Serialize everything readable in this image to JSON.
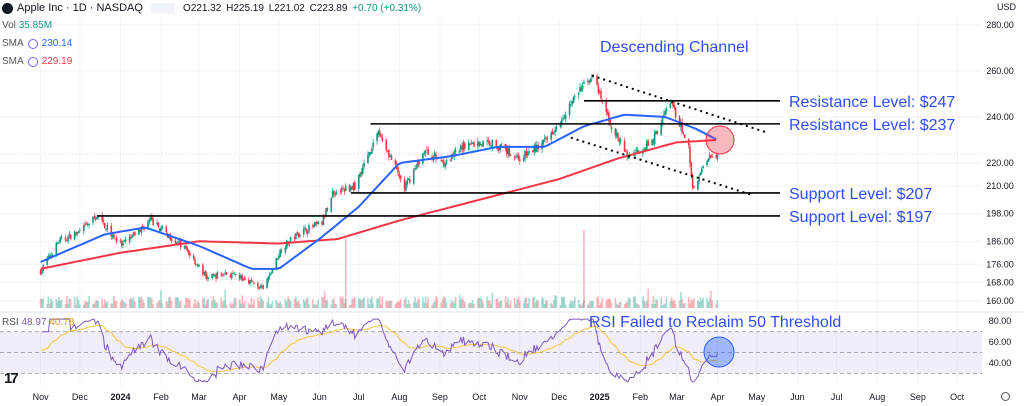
{
  "header": {
    "symbol": "Apple Inc · 1D · NASDAQ",
    "open": "O221.32",
    "high": "H225.19",
    "low": "L221.02",
    "close": "C223.89",
    "change": "+0.70 (+0.31%)",
    "currency": "USD",
    "vol_label": "Vol",
    "vol_value": "35.85M",
    "sma1_label": "SMA",
    "sma1_value": "230.14",
    "sma2_label": "SMA",
    "sma2_value": "229.19",
    "rsi_label": "RSI",
    "rsi_value": "48.97",
    "rsi_ma_value": "40.78"
  },
  "colors": {
    "up": "#089981",
    "down": "#f23645",
    "sma_fast": "#2962ff",
    "sma_slow": "#f23645",
    "annotation": "#2f4dff",
    "rsi_line": "#7e57c2",
    "rsi_ma": "#f5c542"
  },
  "chart_data": {
    "type": "candlestick",
    "title": "",
    "y_axis": {
      "ticks": [
        "280.00",
        "260.00",
        "240.00",
        "220.00",
        "210.00",
        "198.00",
        "186.00",
        "176.00",
        "168.00",
        "160.00"
      ],
      "range": [
        157,
        283
      ]
    },
    "rsi_axis": {
      "ticks": [
        "80.00",
        "60.00",
        "40.00"
      ],
      "range": [
        18,
        85
      ],
      "levels": [
        70,
        50,
        30
      ]
    },
    "x_axis": {
      "ticks": [
        "Nov",
        "Dec",
        "2024",
        "Feb",
        "Mar",
        "Apr",
        "May",
        "Jun",
        "Jul",
        "Aug",
        "Sep",
        "Oct",
        "Nov",
        "Dec",
        "2025",
        "Feb",
        "Mar",
        "Apr",
        "May",
        "Jun",
        "Jul",
        "Aug",
        "Sep",
        "Oct"
      ]
    },
    "price_path": [
      [
        "2023-11-01",
        173
      ],
      [
        "2023-11-15",
        186
      ],
      [
        "2023-12-01",
        190
      ],
      [
        "2023-12-14",
        197
      ],
      [
        "2024-01-02",
        184
      ],
      [
        "2024-01-24",
        195
      ],
      [
        "2024-02-06",
        189
      ],
      [
        "2024-02-21",
        182
      ],
      [
        "2024-03-07",
        170
      ],
      [
        "2024-03-21",
        172
      ],
      [
        "2024-04-08",
        169
      ],
      [
        "2024-04-19",
        165
      ],
      [
        "2024-05-03",
        183
      ],
      [
        "2024-05-17",
        190
      ],
      [
        "2024-06-03",
        194
      ],
      [
        "2024-06-11",
        207
      ],
      [
        "2024-06-28",
        210
      ],
      [
        "2024-07-16",
        234
      ],
      [
        "2024-08-05",
        209
      ],
      [
        "2024-08-20",
        225
      ],
      [
        "2024-09-06",
        220
      ],
      [
        "2024-09-20",
        228
      ],
      [
        "2024-10-10",
        229
      ],
      [
        "2024-11-01",
        222
      ],
      [
        "2024-11-20",
        229
      ],
      [
        "2024-12-16",
        251
      ],
      [
        "2024-12-26",
        258
      ],
      [
        "2025-01-10",
        236
      ],
      [
        "2025-01-22",
        223
      ],
      [
        "2025-02-10",
        229
      ],
      [
        "2025-02-24",
        247
      ],
      [
        "2025-03-10",
        227
      ],
      [
        "2025-03-13",
        209
      ],
      [
        "2025-03-25",
        223
      ],
      [
        "2025-04-01",
        224
      ]
    ],
    "sma_fast": [
      [
        "2023-11-01",
        177
      ],
      [
        "2023-12-20",
        189
      ],
      [
        "2024-01-20",
        192
      ],
      [
        "2024-03-01",
        184
      ],
      [
        "2024-04-10",
        174
      ],
      [
        "2024-05-01",
        174
      ],
      [
        "2024-06-01",
        187
      ],
      [
        "2024-07-01",
        201
      ],
      [
        "2024-08-01",
        220
      ],
      [
        "2024-09-10",
        223
      ],
      [
        "2024-10-15",
        227
      ],
      [
        "2024-11-20",
        227
      ],
      [
        "2024-12-20",
        236
      ],
      [
        "2025-01-20",
        241
      ],
      [
        "2025-02-20",
        240
      ],
      [
        "2025-03-15",
        235
      ],
      [
        "2025-04-01",
        230
      ]
    ],
    "sma_slow": [
      [
        "2023-11-01",
        174
      ],
      [
        "2024-01-01",
        181
      ],
      [
        "2024-03-01",
        186
      ],
      [
        "2024-05-01",
        185
      ],
      [
        "2024-06-15",
        187
      ],
      [
        "2024-08-01",
        195
      ],
      [
        "2024-10-01",
        204
      ],
      [
        "2024-12-01",
        213
      ],
      [
        "2025-01-15",
        222
      ],
      [
        "2025-03-01",
        229
      ],
      [
        "2025-04-01",
        230
      ]
    ],
    "horizontal_levels": [
      {
        "price": 247,
        "from": "2024-12-20",
        "label": "Resistance Level: $247"
      },
      {
        "price": 237,
        "from": "2024-07-10",
        "label": "Resistance Level: $237"
      },
      {
        "price": 207,
        "from": "2024-06-25",
        "label": "Support Level: $207"
      },
      {
        "price": 197,
        "from": "2023-12-14",
        "label": "Support Level: $197"
      }
    ],
    "channel": {
      "label": "Descending Channel",
      "upper": [
        [
          "2024-12-26",
          258
        ],
        [
          "2025-05-10",
          233
        ]
      ],
      "lower": [
        [
          "2024-12-10",
          231
        ],
        [
          "2025-04-28",
          206
        ]
      ]
    },
    "rsi_annotation": "RSI Failed to Reclaim 50 Threshold",
    "annotations": [
      "Descending Channel",
      "Resistance Level: $247",
      "Resistance Level: $237",
      "Support Level: $207",
      "Support Level: $197",
      "RSI Failed to Reclaim 50 Threshold"
    ]
  }
}
